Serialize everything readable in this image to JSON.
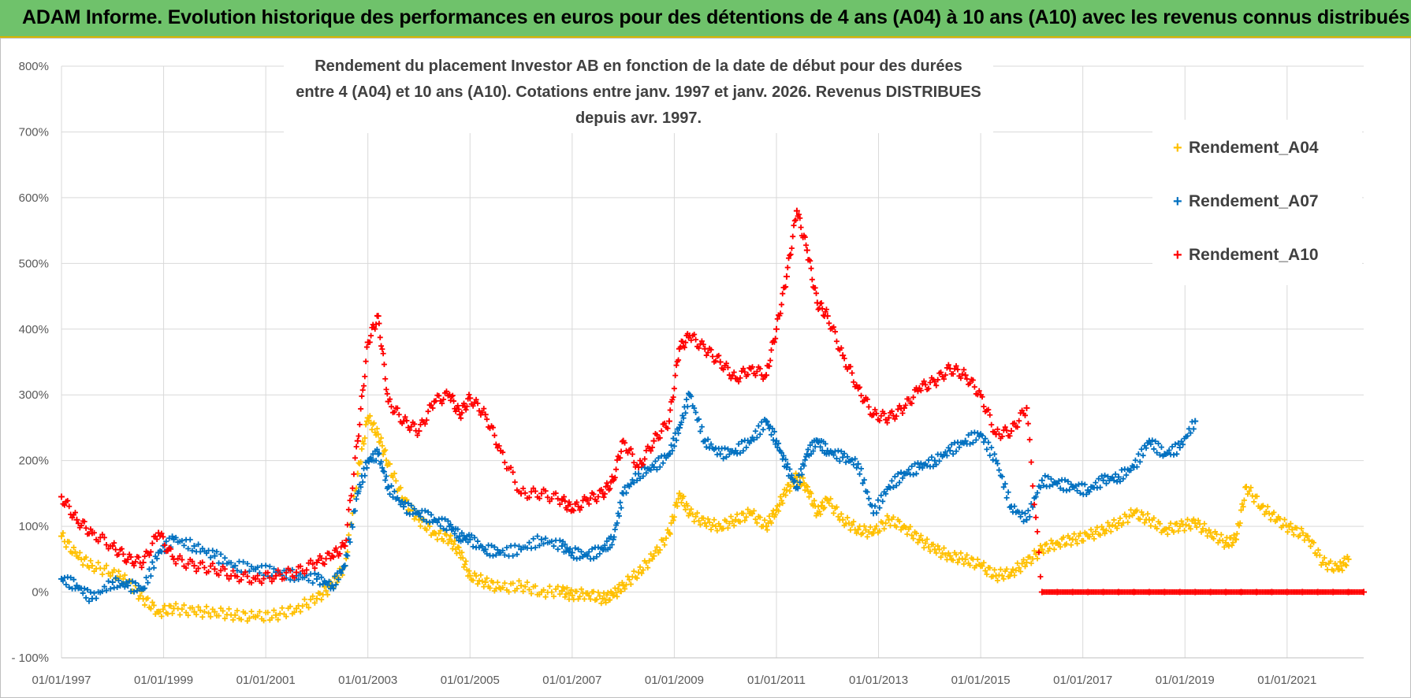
{
  "banner": {
    "title": "ADAM Informe. Evolution historique des performances en euros pour des détentions de 4 ans (A04) à 10 ans (A10) avec les revenus connus distribués"
  },
  "colors": {
    "A04": "#ffc000",
    "A07": "#0070c0",
    "A10": "#ff0000",
    "banner": "#6fc26b",
    "grid": "#d9d9d9"
  },
  "chart_data": {
    "type": "scatter",
    "title_line1": "Rendement du placement Investor AB en fonction de la date de début pour des durées",
    "title_line2": "entre 4 (A04) et 10 ans (A10).  Cotations entre janv. 1997 et janv. 2026. Revenus DISTRIBUES depuis avr. 1997.",
    "xlabel": "",
    "ylabel": "",
    "xlim": [
      1997.0,
      2022.5
    ],
    "ylim": [
      -100,
      800
    ],
    "legend_position": "top-right",
    "y_ticks": [
      -100,
      0,
      100,
      200,
      300,
      400,
      500,
      600,
      700,
      800
    ],
    "y_tick_labels": [
      "- 100%",
      "0%",
      "100%",
      "200%",
      "300%",
      "400%",
      "500%",
      "600%",
      "700%",
      "800%"
    ],
    "x_ticks": [
      1997,
      1999,
      2001,
      2003,
      2005,
      2007,
      2009,
      2011,
      2013,
      2015,
      2017,
      2019,
      2021
    ],
    "x_tick_labels": [
      "01/01/1997",
      "01/01/1999",
      "01/01/2001",
      "01/01/2003",
      "01/01/2005",
      "01/01/2007",
      "01/01/2009",
      "01/01/2011",
      "01/01/2013",
      "01/01/2015",
      "01/01/2017",
      "01/01/2019",
      "01/01/2021"
    ],
    "series": [
      {
        "name": "Rendement_A04",
        "x": [
          1997.0,
          1997.3,
          1997.6,
          1998.0,
          1998.3,
          1998.6,
          1998.9,
          1999.2,
          1999.6,
          2000.0,
          2000.4,
          2000.8,
          2001.2,
          2001.6,
          2002.0,
          2002.3,
          2002.55,
          2002.8,
          2003.0,
          2003.2,
          2003.4,
          2003.7,
          2004.0,
          2004.3,
          2004.6,
          2004.8,
          2005.0,
          2005.3,
          2005.6,
          2006.0,
          2006.4,
          2006.8,
          2007.0,
          2007.3,
          2007.6,
          2007.8,
          2008.0,
          2008.3,
          2008.6,
          2008.9,
          2009.1,
          2009.3,
          2009.6,
          2009.9,
          2010.2,
          2010.5,
          2010.8,
          2011.0,
          2011.2,
          2011.4,
          2011.6,
          2011.8,
          2012.0,
          2012.3,
          2012.6,
          2012.9,
          2013.2,
          2013.5,
          2013.8,
          2014.1,
          2014.4,
          2014.7,
          2015.0,
          2015.3,
          2015.6,
          2015.9,
          2016.2,
          2016.5,
          2016.8,
          2017.1,
          2017.4,
          2017.7,
          2018.0,
          2018.3,
          2018.6,
          2018.9,
          2019.2,
          2019.5,
          2019.8,
          2020.0,
          2020.2,
          2020.5,
          2020.8,
          2021.1,
          2021.4,
          2021.7,
          2022.0,
          2022.2
        ],
        "values": [
          85,
          55,
          40,
          30,
          15,
          -10,
          -30,
          -25,
          -30,
          -30,
          -35,
          -38,
          -35,
          -25,
          -10,
          10,
          40,
          180,
          265,
          240,
          195,
          140,
          110,
          90,
          80,
          60,
          25,
          15,
          5,
          10,
          0,
          2,
          -5,
          -2,
          -10,
          -5,
          10,
          30,
          55,
          90,
          150,
          120,
          105,
          100,
          110,
          120,
          100,
          125,
          155,
          175,
          160,
          120,
          140,
          110,
          95,
          90,
          110,
          100,
          80,
          65,
          55,
          50,
          40,
          25,
          30,
          45,
          65,
          75,
          80,
          85,
          95,
          105,
          120,
          110,
          95,
          100,
          105,
          90,
          75,
          80,
          160,
          130,
          110,
          95,
          85,
          45,
          35,
          50
        ]
      },
      {
        "name": "Rendement_A07",
        "x": [
          1997.0,
          1997.3,
          1997.6,
          1998.0,
          1998.3,
          1998.6,
          1998.9,
          1999.2,
          1999.6,
          2000.0,
          2000.4,
          2000.8,
          2001.2,
          2001.6,
          2002.0,
          2002.3,
          2002.55,
          2002.8,
          2003.0,
          2003.2,
          2003.4,
          2003.7,
          2004.0,
          2004.3,
          2004.6,
          2004.8,
          2005.0,
          2005.3,
          2005.6,
          2006.0,
          2006.4,
          2006.8,
          2007.0,
          2007.3,
          2007.6,
          2007.8,
          2008.0,
          2008.3,
          2008.6,
          2008.9,
          2009.1,
          2009.3,
          2009.6,
          2009.9,
          2010.2,
          2010.5,
          2010.8,
          2011.0,
          2011.2,
          2011.4,
          2011.6,
          2011.8,
          2012.0,
          2012.3,
          2012.6,
          2012.9,
          2013.2,
          2013.5,
          2013.8,
          2014.1,
          2014.4,
          2014.7,
          2015.0,
          2015.3,
          2015.6,
          2015.9,
          2016.2,
          2016.5,
          2016.8,
          2017.1,
          2017.4,
          2017.7,
          2018.0,
          2018.3,
          2018.6,
          2018.9,
          2019.2
        ],
        "values": [
          20,
          10,
          -10,
          15,
          10,
          5,
          60,
          80,
          70,
          55,
          40,
          35,
          30,
          25,
          20,
          10,
          40,
          150,
          200,
          210,
          160,
          130,
          120,
          110,
          100,
          85,
          80,
          65,
          60,
          65,
          80,
          70,
          60,
          55,
          65,
          80,
          150,
          180,
          190,
          210,
          250,
          300,
          230,
          210,
          215,
          230,
          260,
          230,
          190,
          160,
          210,
          230,
          215,
          205,
          195,
          120,
          160,
          180,
          190,
          200,
          215,
          230,
          240,
          200,
          130,
          110,
          170,
          165,
          160,
          155,
          170,
          175,
          190,
          230,
          210,
          220,
          260
        ]
      },
      {
        "name": "Rendement_A10",
        "x": [
          1997.0,
          1997.3,
          1997.6,
          1998.0,
          1998.3,
          1998.6,
          1998.9,
          1999.2,
          1999.6,
          2000.0,
          2000.4,
          2000.8,
          2001.2,
          2001.6,
          2002.0,
          2002.3,
          2002.55,
          2002.8,
          2003.0,
          2003.2,
          2003.4,
          2003.7,
          2004.0,
          2004.3,
          2004.6,
          2004.8,
          2005.0,
          2005.3,
          2005.6,
          2006.0,
          2006.4,
          2006.8,
          2007.0,
          2007.3,
          2007.6,
          2007.8,
          2008.0,
          2008.3,
          2008.6,
          2008.9,
          2009.1,
          2009.3,
          2009.6,
          2009.9,
          2010.2,
          2010.5,
          2010.8,
          2011.0,
          2011.2,
          2011.4,
          2011.6,
          2011.8,
          2012.0,
          2012.3,
          2012.6,
          2012.9,
          2013.2,
          2013.5,
          2013.8,
          2014.1,
          2014.4,
          2014.7,
          2015.0,
          2015.3,
          2015.6,
          2015.9,
          2016.2,
          2016.5,
          2016.8,
          2017.1,
          2017.4,
          2017.7,
          2018.0,
          2018.3,
          2018.6,
          2018.9,
          2019.2,
          2019.5,
          2019.8,
          2020.1,
          2020.4,
          2020.7,
          2021.0,
          2021.3,
          2021.6,
          2021.9,
          2022.2,
          2022.5
        ],
        "values": [
          145,
          110,
          90,
          70,
          50,
          45,
          90,
          50,
          40,
          35,
          25,
          20,
          25,
          30,
          45,
          55,
          70,
          230,
          380,
          420,
          290,
          260,
          245,
          290,
          300,
          270,
          295,
          270,
          215,
          150,
          150,
          140,
          125,
          140,
          150,
          170,
          230,
          190,
          230,
          260,
          370,
          390,
          370,
          350,
          325,
          340,
          330,
          400,
          480,
          580,
          520,
          440,
          420,
          360,
          310,
          270,
          265,
          280,
          310,
          320,
          340,
          330,
          300,
          240,
          245,
          280,
          0,
          0,
          0,
          0,
          0,
          0,
          0,
          0,
          0,
          0,
          0,
          0,
          0,
          0,
          0,
          0,
          0,
          0,
          0,
          0,
          0,
          0
        ]
      }
    ]
  }
}
